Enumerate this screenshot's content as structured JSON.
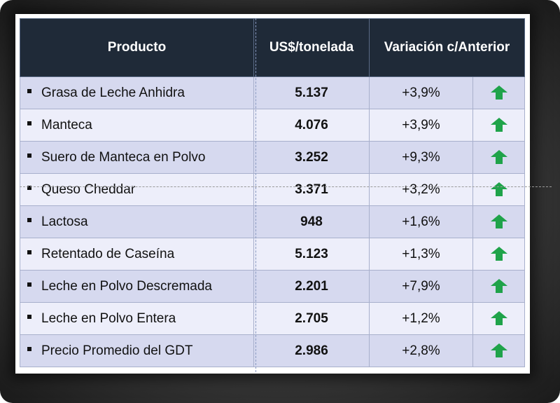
{
  "table": {
    "headers": {
      "producto": "Producto",
      "precio": "US$/tonelada",
      "variacion": "Variación c/Anterior"
    },
    "rows": [
      {
        "producto": "Grasa de Leche Anhidra",
        "precio": "5.137",
        "variacion": "+3,9%",
        "trend": "up"
      },
      {
        "producto": "Manteca",
        "precio": "4.076",
        "variacion": "+3,9%",
        "trend": "up"
      },
      {
        "producto": "Suero de Manteca en Polvo",
        "precio": "3.252",
        "variacion": "+9,3%",
        "trend": "up"
      },
      {
        "producto": "Queso Cheddar",
        "precio": "3.371",
        "variacion": "+3,2%",
        "trend": "up"
      },
      {
        "producto": "Lactosa",
        "precio": "948",
        "variacion": "+1,6%",
        "trend": "up"
      },
      {
        "producto": "Retentado de Caseína",
        "precio": "5.123",
        "variacion": "+1,3%",
        "trend": "up"
      },
      {
        "producto": "Leche en Polvo Descremada",
        "precio": "2.201",
        "variacion": "+7,9%",
        "trend": "up"
      },
      {
        "producto": "Leche en Polvo Entera",
        "precio": "2.705",
        "variacion": "+1,2%",
        "trend": "up"
      },
      {
        "producto": "Precio Promedio del GDT",
        "precio": "2.986",
        "variacion": "+2,8%",
        "trend": "up"
      }
    ]
  },
  "colors": {
    "header_bg": "#1f2a38",
    "row_odd": "#d6d9ef",
    "row_even": "#edeefa",
    "arrow_up": "#1fa34a"
  },
  "icons": {
    "trend_up": "arrow-up-icon"
  }
}
